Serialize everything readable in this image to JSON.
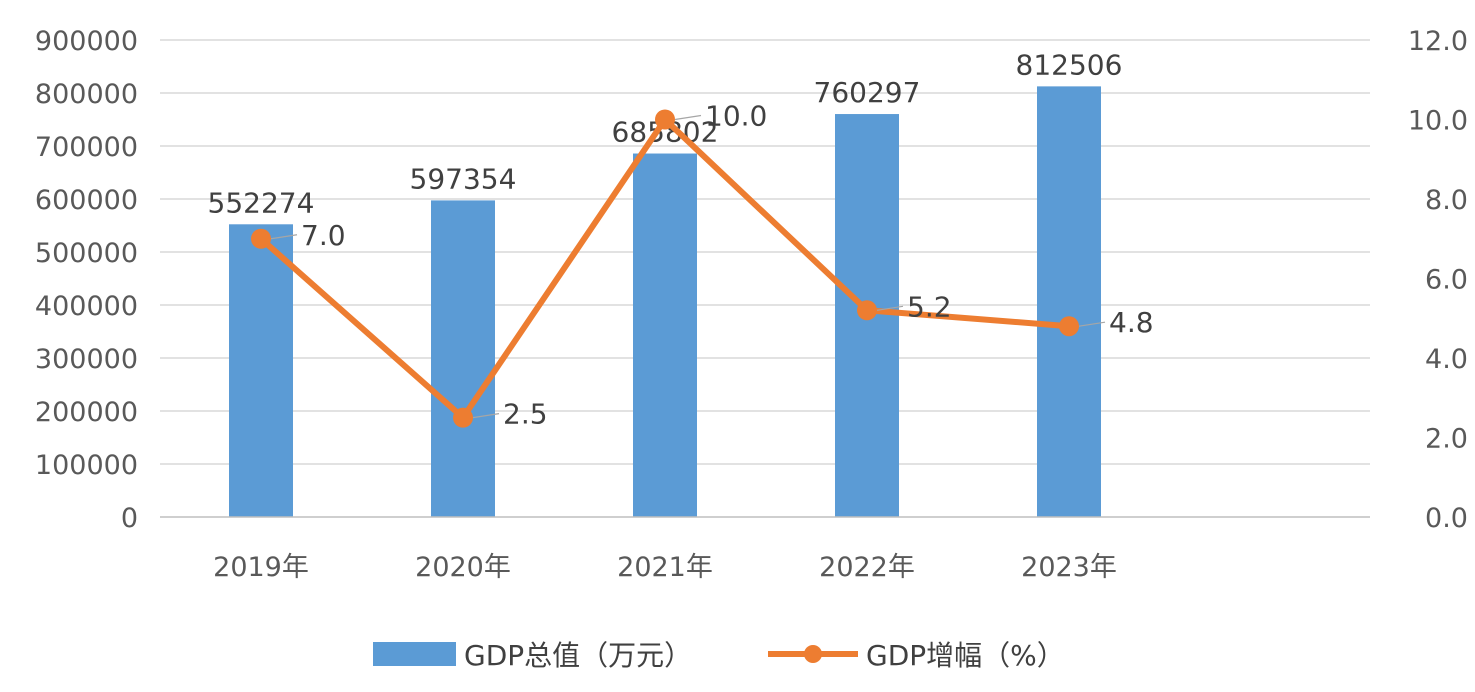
{
  "chart_data": {
    "type": "bar",
    "categories": [
      "2019年",
      "2020年",
      "2021年",
      "2022年",
      "2023年"
    ],
    "series": [
      {
        "name": "GDP总值（万元）",
        "type": "bar",
        "axis": "left",
        "color": "#5B9BD5",
        "values": [
          552274,
          597354,
          685802,
          760297,
          812506
        ],
        "labels": [
          "552274",
          "597354",
          "685802",
          "760297",
          "812506"
        ]
      },
      {
        "name": "GDP增幅（%）",
        "type": "line",
        "axis": "right",
        "color": "#ED7D31",
        "values": [
          7.0,
          2.5,
          10.0,
          5.2,
          4.8
        ],
        "labels": [
          "7.0",
          "2.5",
          "10.0",
          "5.2",
          "4.8"
        ]
      }
    ],
    "y_left": {
      "min": 0,
      "max": 900000,
      "ticks": [
        "0",
        "100000",
        "200000",
        "300000",
        "400000",
        "500000",
        "600000",
        "700000",
        "800000",
        "900000"
      ]
    },
    "y_right": {
      "min": 0,
      "max": 12,
      "ticks": [
        "0.0",
        "2.0",
        "4.0",
        "6.0",
        "8.0",
        "10.0",
        "12.0"
      ]
    },
    "grid": true,
    "legend": "bottom"
  }
}
